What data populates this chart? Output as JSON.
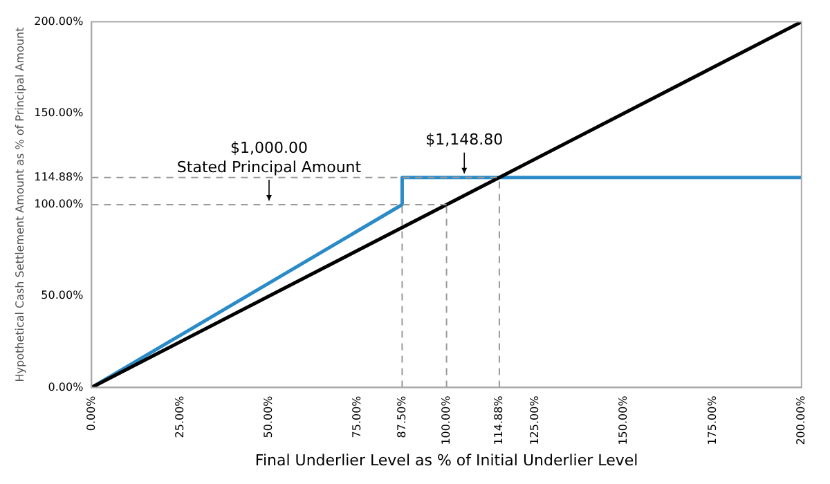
{
  "chart_data": {
    "type": "line",
    "xlabel": "Final Underlier Level as % of Initial Underlier Level",
    "ylabel": "Hypothetical Cash Settlement Amount as % of Principal Amount",
    "xlim": [
      0,
      200
    ],
    "ylim": [
      0,
      200
    ],
    "xticks": [
      {
        "value": 0,
        "label": "0.00%"
      },
      {
        "value": 25,
        "label": "25.00%"
      },
      {
        "value": 50,
        "label": "50.00%"
      },
      {
        "value": 75,
        "label": "75.00%"
      },
      {
        "value": 87.5,
        "label": "87.50%"
      },
      {
        "value": 100,
        "label": "100.00%"
      },
      {
        "value": 114.88,
        "label": "114.88%"
      },
      {
        "value": 125,
        "label": "125.00%"
      },
      {
        "value": 150,
        "label": "150.00%"
      },
      {
        "value": 175,
        "label": "175.00%"
      },
      {
        "value": 200,
        "label": "200.00%"
      }
    ],
    "yticks": [
      {
        "value": 0,
        "label": "0.00%"
      },
      {
        "value": 50,
        "label": "50.00%"
      },
      {
        "value": 100,
        "label": "100.00%"
      },
      {
        "value": 114.88,
        "label": "114.88%"
      },
      {
        "value": 150,
        "label": "150.00%"
      },
      {
        "value": 200,
        "label": "200.00%"
      }
    ],
    "grid": false,
    "legend": false,
    "marker": "none",
    "series": [
      {
        "color": "#999999",
        "line_style": "dashed",
        "x": [
          0,
          114.88
        ],
        "values": [
          114.88,
          114.88
        ]
      },
      {
        "color": "#999999",
        "line_style": "dashed",
        "x": [
          0,
          100
        ],
        "values": [
          100,
          100
        ]
      },
      {
        "color": "#999999",
        "line_style": "dashed",
        "x": [
          87.5,
          87.5
        ],
        "values": [
          0,
          100
        ]
      },
      {
        "color": "#999999",
        "line_style": "dashed",
        "x": [
          100,
          100
        ],
        "values": [
          0,
          100
        ]
      },
      {
        "color": "#999999",
        "line_style": "dashed",
        "x": [
          114.88,
          114.88
        ],
        "values": [
          0,
          114.88
        ]
      },
      {
        "color": "#000000",
        "line_style": "solid",
        "x": [
          0,
          200
        ],
        "values": [
          0,
          200
        ]
      },
      {
        "color": "#2a8bc8",
        "line_style": "solid",
        "x": [
          0,
          87.5,
          87.5,
          200
        ],
        "values": [
          0,
          100,
          114.88,
          114.88
        ]
      }
    ],
    "annotations": [
      {
        "text": "$1,000.00\nStated Principal Amount",
        "x": 50,
        "y": 100
      },
      {
        "text": "$1,148.80",
        "x": 105,
        "y": 114.88
      }
    ]
  }
}
